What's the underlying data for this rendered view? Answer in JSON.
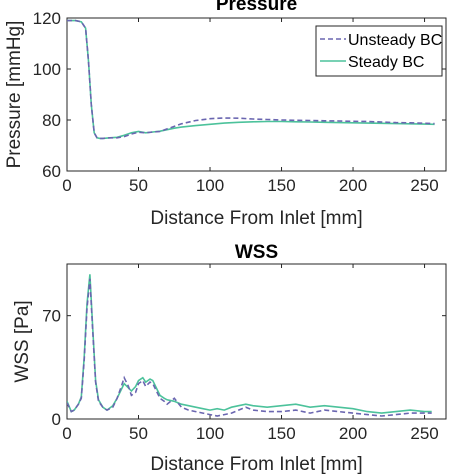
{
  "chart_data": [
    {
      "type": "line",
      "title": "Pressure",
      "xlabel": "Distance From Inlet [mm]",
      "ylabel": "Pressure [mmHg]",
      "xlim": [
        0,
        265
      ],
      "ylim": [
        60,
        120
      ],
      "xticks": [
        0,
        50,
        100,
        150,
        200,
        250
      ],
      "yticks": [
        60,
        80,
        100,
        120
      ],
      "legend_position": "top-right",
      "series": [
        {
          "name": "Unsteady BC",
          "color": "#6a66b0",
          "style": "dashed",
          "x": [
            0,
            6,
            10,
            13,
            15,
            17,
            19,
            21,
            23,
            25,
            30,
            35,
            40,
            45,
            50,
            55,
            60,
            65,
            70,
            75,
            80,
            90,
            100,
            110,
            120,
            130,
            140,
            150,
            160,
            170,
            180,
            190,
            200,
            210,
            220,
            230,
            240,
            250,
            257
          ],
          "y": [
            119,
            119,
            118.5,
            116,
            103,
            86,
            75,
            73,
            72.8,
            72.8,
            73,
            73,
            73.5,
            74.5,
            75.2,
            75,
            75.3,
            75.5,
            76.5,
            77.5,
            78.5,
            79.8,
            80.5,
            80.8,
            80.7,
            80.4,
            80.2,
            80,
            79.9,
            79.8,
            79.7,
            79.6,
            79.5,
            79.4,
            79.2,
            79,
            78.9,
            78.7,
            78.6
          ]
        },
        {
          "name": "Steady BC",
          "color": "#4cc29b",
          "style": "solid",
          "x": [
            0,
            6,
            10,
            13,
            15,
            17,
            19,
            21,
            23,
            25,
            30,
            35,
            40,
            45,
            50,
            55,
            60,
            65,
            70,
            75,
            80,
            90,
            100,
            110,
            120,
            130,
            140,
            150,
            160,
            170,
            180,
            190,
            200,
            210,
            220,
            230,
            240,
            250,
            257
          ],
          "y": [
            119,
            119,
            118.5,
            116,
            103,
            86,
            75,
            73,
            72.8,
            72.8,
            73,
            73.2,
            74,
            75,
            75.5,
            75,
            75.3,
            75.6,
            76.2,
            76.8,
            77.2,
            77.8,
            78.3,
            78.8,
            79.1,
            79.3,
            79.4,
            79.4,
            79.3,
            79.2,
            79.1,
            79,
            78.9,
            78.8,
            78.7,
            78.6,
            78.5,
            78.4,
            78.3
          ]
        }
      ]
    },
    {
      "type": "line",
      "title": "WSS",
      "xlabel": "Distance From Inlet [mm]",
      "ylabel": "WSS [Pa]",
      "xlim": [
        0,
        265
      ],
      "ylim": [
        0,
        105
      ],
      "xticks": [
        0,
        50,
        100,
        150,
        200,
        250
      ],
      "yticks": [
        0,
        70
      ],
      "series": [
        {
          "name": "Unsteady BC",
          "color": "#6a66b0",
          "style": "dashed",
          "x": [
            0,
            3,
            5,
            8,
            10,
            12,
            14,
            16,
            18,
            20,
            22,
            25,
            28,
            32,
            35,
            38,
            40,
            43,
            45,
            48,
            50,
            53,
            55,
            58,
            60,
            63,
            65,
            68,
            70,
            75,
            80,
            85,
            90,
            95,
            100,
            105,
            110,
            115,
            120,
            125,
            130,
            140,
            150,
            160,
            170,
            180,
            190,
            200,
            210,
            220,
            230,
            240,
            250,
            255
          ],
          "y": [
            11,
            5,
            6,
            10,
            14,
            40,
            75,
            95,
            60,
            25,
            12,
            8,
            6,
            8,
            14,
            22,
            28,
            22,
            16,
            18,
            24,
            26,
            22,
            25,
            24,
            18,
            14,
            12,
            10,
            14,
            8,
            6,
            5,
            4,
            3,
            2,
            3,
            4,
            6,
            8,
            6,
            5,
            5,
            6,
            4,
            6,
            5,
            4,
            3,
            2,
            3,
            4,
            4,
            4
          ]
        },
        {
          "name": "Steady BC",
          "color": "#4cc29b",
          "style": "solid",
          "x": [
            0,
            3,
            5,
            8,
            10,
            12,
            14,
            16,
            18,
            20,
            22,
            25,
            28,
            32,
            35,
            38,
            40,
            43,
            45,
            48,
            50,
            53,
            55,
            58,
            60,
            63,
            65,
            68,
            70,
            75,
            80,
            85,
            90,
            95,
            100,
            105,
            110,
            115,
            120,
            125,
            130,
            140,
            150,
            160,
            170,
            180,
            190,
            200,
            210,
            220,
            230,
            240,
            250,
            255
          ],
          "y": [
            12,
            5,
            6,
            10,
            15,
            42,
            78,
            98,
            62,
            26,
            13,
            8,
            6,
            9,
            14,
            20,
            24,
            21,
            19,
            22,
            26,
            28,
            25,
            27,
            26,
            20,
            16,
            14,
            13,
            12,
            10,
            9,
            8,
            7,
            6,
            7,
            6,
            8,
            9,
            10,
            9,
            8,
            9,
            10,
            8,
            9,
            8,
            7,
            5,
            4,
            5,
            6,
            5,
            5
          ]
        }
      ]
    }
  ]
}
